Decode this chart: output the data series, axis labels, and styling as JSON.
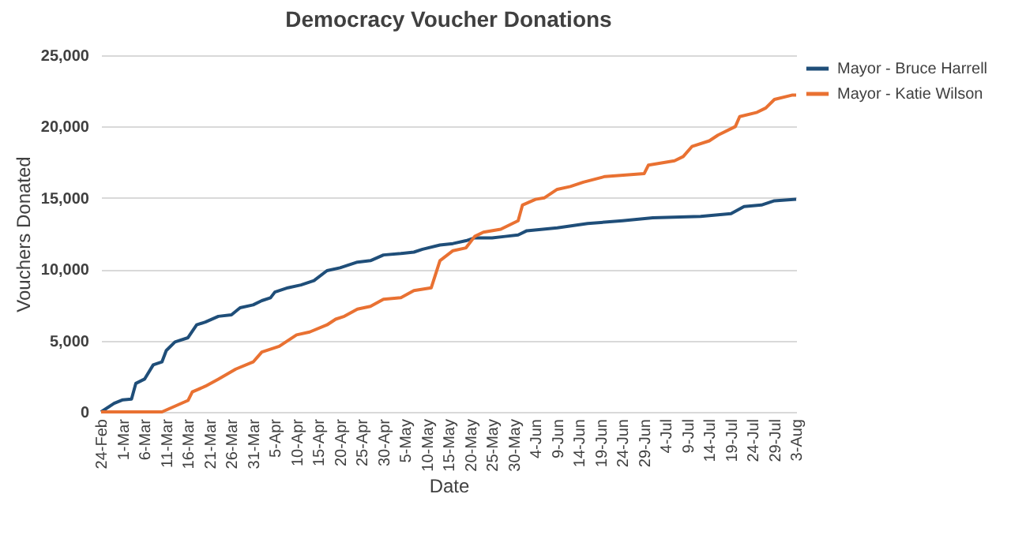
{
  "chart_data": {
    "type": "line",
    "title": "Democracy Voucher Donations",
    "xlabel": "Date",
    "ylabel": "Vouchers Donated",
    "xlim": [
      "--02-24",
      "--08-03"
    ],
    "xticks": [
      {
        "value": "--02-24",
        "label": "24-Feb"
      },
      {
        "value": "--03-01",
        "label": "1-Mar"
      },
      {
        "value": "--03-06",
        "label": "6-Mar"
      },
      {
        "value": "--03-11",
        "label": "11-Mar"
      },
      {
        "value": "--03-16",
        "label": "16-Mar"
      },
      {
        "value": "--03-21",
        "label": "21-Mar"
      },
      {
        "value": "--03-26",
        "label": "26-Mar"
      },
      {
        "value": "--03-31",
        "label": "31-Mar"
      },
      {
        "value": "--04-05",
        "label": "5-Apr"
      },
      {
        "value": "--04-10",
        "label": "10-Apr"
      },
      {
        "value": "--04-15",
        "label": "15-Apr"
      },
      {
        "value": "--04-20",
        "label": "20-Apr"
      },
      {
        "value": "--04-25",
        "label": "25-Apr"
      },
      {
        "value": "--04-30",
        "label": "30-Apr"
      },
      {
        "value": "--05-05",
        "label": "5-May"
      },
      {
        "value": "--05-10",
        "label": "10-May"
      },
      {
        "value": "--05-15",
        "label": "15-May"
      },
      {
        "value": "--05-20",
        "label": "20-May"
      },
      {
        "value": "--05-25",
        "label": "25-May"
      },
      {
        "value": "--05-30",
        "label": "30-May"
      },
      {
        "value": "--06-04",
        "label": "4-Jun"
      },
      {
        "value": "--06-09",
        "label": "9-Jun"
      },
      {
        "value": "--06-14",
        "label": "14-Jun"
      },
      {
        "value": "--06-19",
        "label": "19-Jun"
      },
      {
        "value": "--06-24",
        "label": "24-Jun"
      },
      {
        "value": "--06-29",
        "label": "29-Jun"
      },
      {
        "value": "--07-04",
        "label": "4-Jul"
      },
      {
        "value": "--07-09",
        "label": "9-Jul"
      },
      {
        "value": "--07-14",
        "label": "14-Jul"
      },
      {
        "value": "--07-19",
        "label": "19-Jul"
      },
      {
        "value": "--07-24",
        "label": "24-Jul"
      },
      {
        "value": "--07-29",
        "label": "29-Jul"
      },
      {
        "value": "--08-03",
        "label": "3-Aug"
      }
    ],
    "ylim": [
      0,
      25000
    ],
    "yticks": [
      {
        "value": 0,
        "label": "0"
      },
      {
        "value": 5000,
        "label": "5,000"
      },
      {
        "value": 10000,
        "label": "10,000"
      },
      {
        "value": 15000,
        "label": "15,000"
      },
      {
        "value": 20000,
        "label": "20,000"
      },
      {
        "value": 25000,
        "label": "25,000"
      }
    ],
    "grid": "y",
    "legend": "right",
    "line_style": "solid",
    "series": [
      {
        "name": "Mayor - Bruce Harrell",
        "color": "#1f4e79",
        "x": [
          "--02-24",
          "--02-27",
          "--03-01",
          "--03-03",
          "--03-04",
          "--03-06",
          "--03-08",
          "--03-10",
          "--03-11",
          "--03-13",
          "--03-16",
          "--03-18",
          "--03-20",
          "--03-23",
          "--03-26",
          "--03-28",
          "--03-31",
          "--04-02",
          "--04-04",
          "--04-05",
          "--04-08",
          "--04-11",
          "--04-14",
          "--04-17",
          "--04-20",
          "--04-24",
          "--04-27",
          "--04-30",
          "--05-04",
          "--05-07",
          "--05-09",
          "--05-13",
          "--05-16",
          "--05-19",
          "--05-21",
          "--05-25",
          "--05-28",
          "--05-31",
          "--06-02",
          "--06-09",
          "--06-16",
          "--06-24",
          "--07-01",
          "--07-12",
          "--07-19",
          "--07-22",
          "--07-26",
          "--07-29",
          "--08-03"
        ],
        "values": [
          0,
          600,
          850,
          900,
          2000,
          2300,
          3300,
          3500,
          4300,
          4900,
          5200,
          6100,
          6300,
          6700,
          6800,
          7300,
          7500,
          7800,
          8000,
          8400,
          8700,
          8900,
          9200,
          9900,
          10100,
          10500,
          10600,
          11000,
          11100,
          11200,
          11400,
          11700,
          11800,
          12000,
          12200,
          12200,
          12300,
          12400,
          12700,
          12900,
          13200,
          13400,
          13600,
          13700,
          13900,
          14400,
          14500,
          14800,
          14900
        ]
      },
      {
        "name": "Mayor - Katie Wilson",
        "color": "#e97132",
        "x": [
          "--02-24",
          "--03-10",
          "--03-13",
          "--03-16",
          "--03-17",
          "--03-20",
          "--03-23",
          "--03-27",
          "--03-31",
          "--04-02",
          "--04-06",
          "--04-10",
          "--04-13",
          "--04-17",
          "--04-19",
          "--04-21",
          "--04-24",
          "--04-27",
          "--04-30",
          "--05-04",
          "--05-07",
          "--05-11",
          "--05-13",
          "--05-16",
          "--05-19",
          "--05-21",
          "--05-23",
          "--05-27",
          "--05-31",
          "--06-01",
          "--06-04",
          "--06-06",
          "--06-09",
          "--06-12",
          "--06-15",
          "--06-20",
          "--06-29",
          "--06-30",
          "--07-06",
          "--07-08",
          "--07-10",
          "--07-14",
          "--07-16",
          "--07-20",
          "--07-21",
          "--07-25",
          "--07-27",
          "--07-29",
          "--08-02",
          "--08-03"
        ],
        "values": [
          0,
          0,
          400,
          800,
          1400,
          1800,
          2300,
          3000,
          3500,
          4200,
          4600,
          5400,
          5600,
          6100,
          6500,
          6700,
          7200,
          7400,
          7900,
          8000,
          8500,
          8700,
          10600,
          11300,
          11500,
          12300,
          12600,
          12800,
          13400,
          14500,
          14900,
          15000,
          15600,
          15800,
          16100,
          16500,
          16700,
          17300,
          17600,
          17900,
          18600,
          19000,
          19400,
          20000,
          20700,
          21000,
          21300,
          21900,
          22200,
          22200
        ]
      }
    ]
  }
}
